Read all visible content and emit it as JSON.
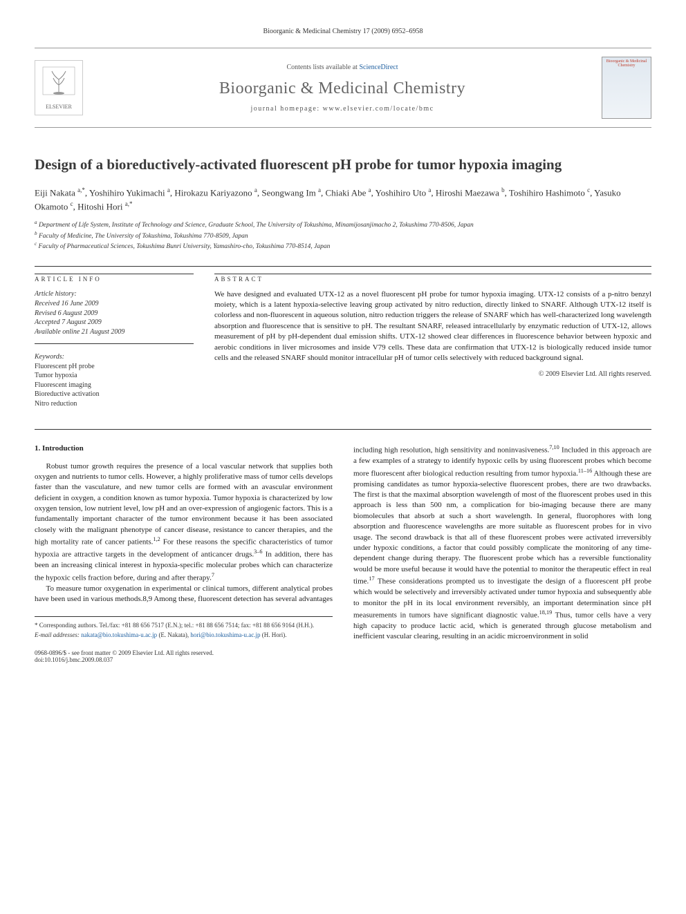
{
  "header": {
    "journal_ref": "Bioorganic & Medicinal Chemistry 17 (2009) 6952–6958",
    "contents_prefix": "Contents lists available at ",
    "contents_link": "ScienceDirect",
    "journal_name": "Bioorganic & Medicinal Chemistry",
    "homepage_label": "journal homepage: www.elsevier.com/locate/bmc",
    "publisher": "ELSEVIER",
    "cover_text": "Bioorganic & Medicinal Chemistry"
  },
  "article": {
    "title": "Design of a bioreductively-activated fluorescent pH probe for tumor hypoxia imaging",
    "authors_html": "Eiji Nakata <sup>a,*</sup>, Yoshihiro Yukimachi <sup>a</sup>, Hirokazu Kariyazono <sup>a</sup>, Seongwang Im <sup>a</sup>, Chiaki Abe <sup>a</sup>, Yoshihiro Uto <sup>a</sup>, Hiroshi Maezawa <sup>b</sup>, Toshihiro Hashimoto <sup>c</sup>, Yasuko Okamoto <sup>c</sup>, Hitoshi Hori <sup>a,*</sup>",
    "affiliations": [
      "a Department of Life System, Institute of Technology and Science, Graduate School, The University of Tokushima, Minamijosanjimacho 2, Tokushima 770-8506, Japan",
      "b Faculty of Medicine, The University of Tokushima, Tokushima 770-8509, Japan",
      "c Faculty of Pharmaceutical Sciences, Tokushima Bunri University, Yamashiro-cho, Tokushima 770-8514, Japan"
    ]
  },
  "info": {
    "label": "ARTICLE INFO",
    "history_head": "Article history:",
    "history": [
      "Received 16 June 2009",
      "Revised 6 August 2009",
      "Accepted 7 August 2009",
      "Available online 21 August 2009"
    ],
    "keywords_head": "Keywords:",
    "keywords": [
      "Fluorescent pH probe",
      "Tumor hypoxia",
      "Fluorescent imaging",
      "Bioreductive activation",
      "Nitro reduction"
    ]
  },
  "abstract": {
    "label": "ABSTRACT",
    "text": "We have designed and evaluated UTX-12 as a novel fluorescent pH probe for tumor hypoxia imaging. UTX-12 consists of a p-nitro benzyl moiety, which is a latent hypoxia-selective leaving group activated by nitro reduction, directly linked to SNARF. Although UTX-12 itself is colorless and non-fluorescent in aqueous solution, nitro reduction triggers the release of SNARF which has well-characterized long wavelength absorption and fluorescence that is sensitive to pH. The resultant SNARF, released intracellularly by enzymatic reduction of UTX-12, allows measurement of pH by pH-dependent dual emission shifts. UTX-12 showed clear differences in fluorescence behavior between hypoxic and aerobic conditions in liver microsomes and inside V79 cells. These data are confirmation that UTX-12 is biologically reduced inside tumor cells and the released SNARF should monitor intracellular pH of tumor cells selectively with reduced background signal.",
    "copyright": "© 2009 Elsevier Ltd. All rights reserved."
  },
  "body": {
    "heading": "1. Introduction",
    "col1_p1": "Robust tumor growth requires the presence of a local vascular network that supplies both oxygen and nutrients to tumor cells. However, a highly proliferative mass of tumor cells develops faster than the vasculature, and new tumor cells are formed with an avascular environment deficient in oxygen, a condition known as tumor hypoxia. Tumor hypoxia is characterized by low oxygen tension, low nutrient level, low pH and an over-expression of angiogenic factors. This is a fundamentally important character of the tumor environment because it has been associated closely with the malignant phenotype of cancer disease, resistance to cancer therapies, and the high mortality rate of cancer patients.1,2 For these reasons the specific characteristics of tumor hypoxia are attractive targets in the development of anticancer drugs.3–6 In addition, there has been an increasing clinical interest in hypoxia-specific molecular probes which can characterize the hypoxic cells fraction before, during and after therapy.7",
    "col1_p2": "To measure tumor oxygenation in experimental or clinical tumors, different analytical probes have been used in various methods.8,9 Among these, fluorescent detection has several advantages",
    "col2_p1": "including high resolution, high sensitivity and noninvasiveness.7,10 Included in this approach are a few examples of a strategy to identify hypoxic cells by using fluorescent probes which become more fluorescent after biological reduction resulting from tumor hypoxia.11–16 Although these are promising candidates as tumor hypoxia-selective fluorescent probes, there are two drawbacks. The first is that the maximal absorption wavelength of most of the fluorescent probes used in this approach is less than 500 nm, a complication for bio-imaging because there are many biomolecules that absorb at such a short wavelength. In general, fluorophores with long absorption and fluorescence wavelengths are more suitable as fluorescent probes for in vivo usage. The second drawback is that all of these fluorescent probes were activated irreversibly under hypoxic conditions, a factor that could possibly complicate the monitoring of any time-dependent change during therapy. The fluorescent probe which has a reversible functionality would be more useful because it would have the potential to monitor the therapeutic effect in real time.17 These considerations prompted us to investigate the design of a fluorescent pH probe which would be selectively and irreversibly activated under tumor hypoxia and subsequently able to monitor the pH in its local environment reversibly, an important determination since pH measurements in tumors have significant diagnostic value.18,19 Thus, tumor cells have a very high capacity to produce lactic acid, which is generated through glucose metabolism and inefficient vascular clearing, resulting in an acidic microenvironment in solid"
  },
  "footnotes": {
    "corr": "* Corresponding authors. Tel./fax: +81 88 656 7517 (E.N.); tel.: +81 88 656 7514; fax: +81 88 656 9164 (H.H.).",
    "email_label": "E-mail addresses: ",
    "email1": "nakata@bio.tokushima-u.ac.jp",
    "email1_who": " (E. Nakata), ",
    "email2": "hori@bio.tokushima-u.ac.jp",
    "email2_who": " (H. Hori)."
  },
  "bottom": {
    "left1": "0968-0896/$ - see front matter © 2009 Elsevier Ltd. All rights reserved.",
    "left2": "doi:10.1016/j.bmc.2009.08.037"
  },
  "colors": {
    "link": "#2060a0",
    "title": "#3a3a3a",
    "rule": "#333333"
  }
}
